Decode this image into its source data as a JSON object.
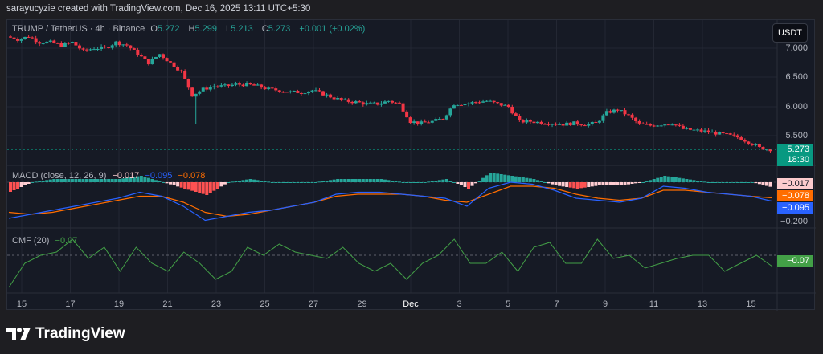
{
  "credit": "sarayucyzie created with TradingView.com, Dec 16, 2025 13:11 UTC+5:30",
  "symbol": {
    "title": "TRUMP / TetherUS · 4h · Binance",
    "o_label": "O",
    "o": "5.272",
    "h_label": "H",
    "h": "5.299",
    "l_label": "L",
    "l": "5.213",
    "c_label": "C",
    "c": "5.273",
    "change": "+0.001 (+0.02%)"
  },
  "currency_button": "USDT",
  "price_axis": [
    "7.000",
    "6.500",
    "6.000",
    "5.500"
  ],
  "last_price": {
    "value": "5.273",
    "countdown": "18:30"
  },
  "macd": {
    "title": "MACD (close, 12, 26, 9)",
    "hist": "−0.017",
    "macd": "−0.095",
    "signal": "−0.078",
    "axis": [
      "−0.200"
    ]
  },
  "cmf": {
    "title": "CMF (20)",
    "value": "−0.07"
  },
  "x_axis": [
    "15",
    "17",
    "19",
    "21",
    "23",
    "25",
    "27",
    "29",
    "Dec",
    "3",
    "5",
    "7",
    "9",
    "11",
    "13",
    "15"
  ],
  "logo": "TradingView",
  "colors": {
    "up": "#26a69a",
    "down": "#f23645",
    "macd": "#2962ff",
    "signal": "#ff6d00",
    "cmf": "#43a047"
  },
  "chart_data": {
    "type": "candlestick",
    "closes": [
      7.2,
      7.15,
      7.2,
      7.1,
      7.1,
      7.05,
      7.1,
      6.95,
      7.0,
      7.0,
      7.1,
      7.05,
      6.9,
      6.75,
      6.9,
      6.75,
      6.6,
      6.2,
      6.3,
      6.35,
      6.35,
      6.38,
      6.38,
      6.35,
      6.3,
      6.28,
      6.25,
      6.25,
      6.28,
      6.22,
      6.15,
      6.1,
      6.08,
      6.05,
      6.05,
      6.1,
      6.05,
      5.75,
      5.72,
      5.75,
      5.8,
      6.05,
      6.05,
      6.08,
      6.1,
      6.05,
      6.0,
      5.75,
      5.75,
      5.73,
      5.72,
      5.7,
      5.72,
      5.7,
      5.72,
      5.9,
      5.95,
      5.85,
      5.7,
      5.68,
      5.7,
      5.72,
      5.62,
      5.6,
      5.58,
      5.55,
      5.52,
      5.48,
      5.4,
      5.3,
      5.273
    ],
    "macd_line": [
      -0.18,
      -0.16,
      -0.14,
      -0.12,
      -0.1,
      -0.08,
      -0.05,
      -0.07,
      -0.12,
      -0.19,
      -0.17,
      -0.15,
      -0.14,
      -0.12,
      -0.1,
      -0.06,
      -0.05,
      -0.05,
      -0.06,
      -0.07,
      -0.08,
      -0.12,
      -0.03,
      0.0,
      -0.01,
      -0.04,
      -0.08,
      -0.09,
      -0.1,
      -0.08,
      -0.02,
      -0.03,
      -0.05,
      -0.06,
      -0.07,
      -0.095
    ],
    "signal_line": [
      -0.15,
      -0.16,
      -0.15,
      -0.13,
      -0.11,
      -0.09,
      -0.07,
      -0.07,
      -0.1,
      -0.15,
      -0.17,
      -0.16,
      -0.14,
      -0.12,
      -0.1,
      -0.07,
      -0.06,
      -0.06,
      -0.06,
      -0.07,
      -0.09,
      -0.1,
      -0.06,
      -0.02,
      -0.02,
      -0.03,
      -0.06,
      -0.08,
      -0.09,
      -0.08,
      -0.04,
      -0.04,
      -0.05,
      -0.06,
      -0.07,
      -0.078
    ],
    "cmf_line": [
      -0.2,
      -0.05,
      0.0,
      0.02,
      0.1,
      -0.02,
      0.05,
      -0.1,
      0.05,
      -0.05,
      -0.1,
      0.02,
      -0.05,
      -0.15,
      -0.1,
      0.05,
      0.0,
      0.07,
      0.02,
      0.0,
      -0.02,
      0.05,
      -0.05,
      -0.1,
      -0.05,
      -0.15,
      -0.05,
      0.0,
      0.1,
      -0.05,
      -0.05,
      0.02,
      -0.1,
      0.05,
      0.08,
      -0.05,
      -0.05,
      0.1,
      -0.02,
      0.0,
      -0.08,
      -0.05,
      -0.02,
      0.0,
      0.0,
      -0.1,
      -0.05,
      0.0,
      -0.07
    ]
  }
}
